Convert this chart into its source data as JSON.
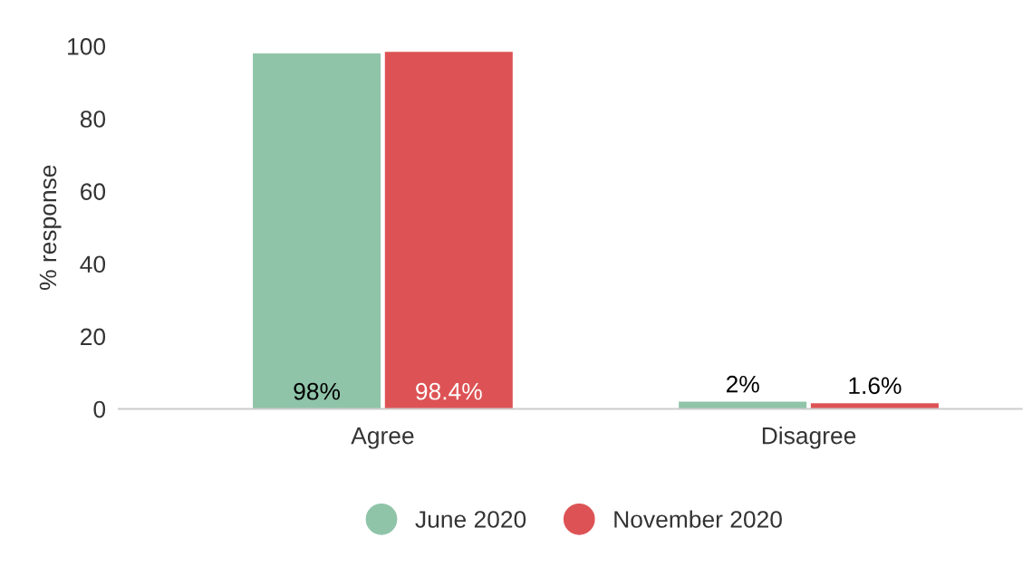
{
  "chart_data": {
    "type": "bar",
    "ylabel": "% response",
    "categories": [
      "Agree",
      "Disagree"
    ],
    "series": [
      {
        "name": "June 2020",
        "color": "#8fc4a9",
        "values": [
          98,
          2
        ],
        "value_labels": [
          "98%",
          "2%"
        ]
      },
      {
        "name": "November 2020",
        "color": "#dd5355",
        "values": [
          98.4,
          1.6
        ],
        "value_labels": [
          "98.4%",
          "1.6%"
        ]
      }
    ],
    "ylim": [
      0,
      100
    ],
    "yticks": [
      0,
      20,
      40,
      60,
      80,
      100
    ],
    "grid": false,
    "legend": "bottom"
  }
}
